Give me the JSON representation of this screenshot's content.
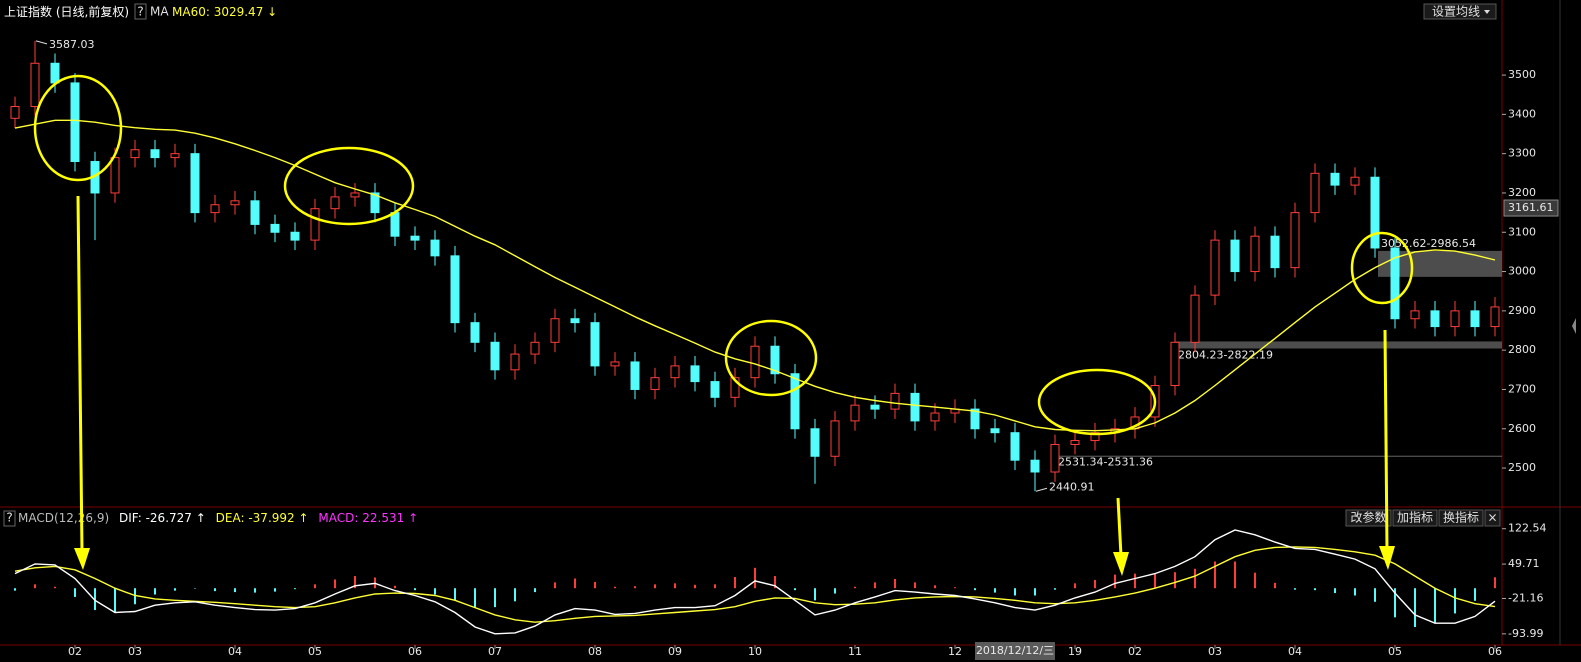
{
  "toolbar": {
    "help": "?",
    "ma_settings": "设置均线",
    "macd_buttons": [
      "改参数",
      "加指标",
      "换指标"
    ],
    "close": "×",
    "cursor_date": "2018/12/12/三"
  },
  "chart_data": [
    {
      "type": "candlestick",
      "title": "上证指数",
      "subtitle": "(日线,前复权)",
      "indicator_label": "MA",
      "up_color": "#ff3c3c",
      "down_color": "#54fcfc",
      "ylim": [
        2406,
        3691
      ],
      "yticks": [
        2500,
        2600,
        2700,
        2800,
        2900,
        3000,
        3100,
        3200,
        3300,
        3400,
        3500
      ],
      "cursor_price": 3161.61,
      "open": [
        3390,
        3420,
        3530,
        3480,
        3280,
        3200,
        3290,
        3310,
        3290,
        3300,
        3150,
        3170,
        3180,
        3120,
        3100,
        3080,
        3160,
        3190,
        3200,
        3150,
        3090,
        3080,
        3040,
        2870,
        2820,
        2750,
        2790,
        2820,
        2880,
        2870,
        2760,
        2770,
        2700,
        2730,
        2760,
        2720,
        2680,
        2730,
        2810,
        2740,
        2600,
        2530,
        2620,
        2660,
        2650,
        2690,
        2620,
        2640,
        2650,
        2600,
        2590,
        2520,
        2490,
        2560,
        2570,
        2590,
        2600,
        2630,
        2710,
        2820,
        2940,
        3080,
        3000,
        3090,
        3010,
        3150,
        3250,
        3220,
        3240,
        3060,
        2880,
        2900,
        2860,
        2900,
        2860
      ],
      "high": [
        3445,
        3587.03,
        3555,
        3505,
        3305,
        3315,
        3335,
        3335,
        3325,
        3325,
        3195,
        3205,
        3205,
        3145,
        3125,
        3185,
        3215,
        3225,
        3225,
        3175,
        3115,
        3105,
        3065,
        2895,
        2845,
        2815,
        2845,
        2905,
        2905,
        2895,
        2795,
        2795,
        2755,
        2785,
        2785,
        2745,
        2755,
        2835,
        2835,
        2765,
        2625,
        2645,
        2685,
        2685,
        2715,
        2715,
        2665,
        2675,
        2675,
        2625,
        2615,
        2545,
        2585,
        2595,
        2615,
        2625,
        2655,
        2735,
        2845,
        2965,
        3105,
        3105,
        3115,
        3115,
        3175,
        3275,
        3275,
        3265,
        3265,
        3085,
        2925,
        2925,
        2925,
        2925,
        2935
      ],
      "low": [
        3365,
        3395,
        3455,
        3255,
        3080,
        3175,
        3265,
        3265,
        3265,
        3125,
        3125,
        3145,
        3095,
        3075,
        3055,
        3055,
        3135,
        3165,
        3125,
        3065,
        3055,
        3015,
        2845,
        2795,
        2725,
        2725,
        2765,
        2795,
        2845,
        2735,
        2735,
        2675,
        2675,
        2705,
        2695,
        2655,
        2655,
        2705,
        2715,
        2575,
        2460,
        2505,
        2595,
        2625,
        2625,
        2595,
        2595,
        2615,
        2575,
        2565,
        2495,
        2440.91,
        2465,
        2535,
        2545,
        2565,
        2575,
        2605,
        2685,
        2795,
        2915,
        2975,
        2975,
        2985,
        2985,
        3125,
        3195,
        3195,
        3035,
        2855,
        2855,
        2835,
        2835,
        2835,
        2835
      ],
      "close": [
        3420,
        3530,
        3480,
        3280,
        3200,
        3290,
        3310,
        3290,
        3300,
        3150,
        3170,
        3180,
        3120,
        3100,
        3080,
        3160,
        3190,
        3200,
        3150,
        3090,
        3080,
        3040,
        2870,
        2820,
        2750,
        2790,
        2820,
        2880,
        2870,
        2760,
        2770,
        2700,
        2730,
        2760,
        2720,
        2680,
        2730,
        2810,
        2740,
        2600,
        2530,
        2620,
        2660,
        2650,
        2690,
        2620,
        2640,
        2650,
        2600,
        2590,
        2520,
        2490,
        2560,
        2570,
        2590,
        2600,
        2630,
        2710,
        2820,
        2940,
        3080,
        3000,
        3090,
        3010,
        3150,
        3250,
        3220,
        3240,
        3060,
        2880,
        2900,
        2860,
        2900,
        2860,
        2910
      ],
      "series": [
        {
          "name": "MA60:",
          "color": "#ffff33",
          "trend": "↓",
          "values": [
            3365,
            3375,
            3385,
            3385,
            3380,
            3372,
            3366,
            3362,
            3360,
            3352,
            3340,
            3325,
            3308,
            3290,
            3270,
            3248,
            3226,
            3210,
            3195,
            3175,
            3158,
            3140,
            3115,
            3090,
            3068,
            3040,
            3012,
            2985,
            2960,
            2935,
            2910,
            2885,
            2862,
            2840,
            2818,
            2795,
            2778,
            2765,
            2748,
            2728,
            2708,
            2692,
            2680,
            2672,
            2665,
            2660,
            2655,
            2650,
            2645,
            2635,
            2620,
            2605,
            2598,
            2596,
            2595,
            2597,
            2600,
            2615,
            2640,
            2672,
            2710,
            2750,
            2790,
            2830,
            2870,
            2910,
            2945,
            2980,
            3010,
            3035,
            3050,
            3055,
            3052,
            3042,
            3029.47
          ]
        }
      ],
      "zones": [
        {
          "label": "2804.23-2822.19",
          "values": [
            2804.23,
            2822.19
          ]
        },
        {
          "label": "3052.62-2986.54",
          "values": [
            3052.62,
            2986.54
          ]
        },
        {
          "label": "2531.34-2531.36",
          "values": [
            2531.34,
            2531.36
          ]
        }
      ]
    },
    {
      "type": "macd",
      "title": "MACD(12,26,9)",
      "up_color": "#ff3c3c",
      "down_color": "#54fcfc",
      "ylim": [
        -117,
        157
      ],
      "yticks": [
        -93.99,
        -21.16,
        49.71,
        122.54
      ],
      "categories": [
        null,
        null,
        null,
        "02",
        null,
        null,
        "03",
        null,
        null,
        null,
        null,
        "04",
        null,
        null,
        null,
        "05",
        null,
        null,
        null,
        null,
        "06",
        null,
        null,
        null,
        "07",
        null,
        null,
        null,
        null,
        "08",
        null,
        null,
        null,
        "09",
        null,
        null,
        null,
        "10",
        null,
        null,
        null,
        null,
        "11",
        null,
        null,
        null,
        null,
        "12",
        null,
        null,
        null,
        null,
        null,
        "19",
        null,
        null,
        "02",
        null,
        null,
        null,
        "03",
        null,
        null,
        null,
        "04",
        null,
        null,
        null,
        null,
        "05",
        null,
        null,
        null,
        null,
        "06"
      ],
      "series": [
        {
          "name": "DIF:",
          "color": "#ffffff",
          "trend": "↑",
          "values": [
            30,
            50,
            48,
            20,
            -25,
            -50,
            -48,
            -35,
            -30,
            -28,
            -35,
            -40,
            -44,
            -45,
            -42,
            -30,
            -12,
            5,
            10,
            -5,
            -15,
            -28,
            -50,
            -80,
            -94,
            -92,
            -78,
            -55,
            -42,
            -45,
            -54,
            -52,
            -45,
            -40,
            -40,
            -36,
            -15,
            15,
            5,
            -25,
            -55,
            -45,
            -30,
            -18,
            -5,
            -8,
            -12,
            -15,
            -22,
            -30,
            -40,
            -45,
            -35,
            -20,
            -8,
            10,
            20,
            30,
            45,
            65,
            100,
            120,
            110,
            95,
            82,
            80,
            70,
            60,
            40,
            -10,
            -55,
            -72,
            -72,
            -58,
            -26.727
          ]
        },
        {
          "name": "DEA:",
          "color": "#ffff33",
          "trend": "↑",
          "values": [
            35,
            42,
            45,
            38,
            20,
            0,
            -15,
            -22,
            -25,
            -27,
            -29,
            -32,
            -35,
            -38,
            -40,
            -38,
            -30,
            -20,
            -12,
            -10,
            -11,
            -15,
            -25,
            -40,
            -55,
            -65,
            -70,
            -67,
            -62,
            -58,
            -57,
            -56,
            -53,
            -50,
            -47,
            -44,
            -38,
            -27,
            -20,
            -21,
            -30,
            -34,
            -33,
            -30,
            -24,
            -20,
            -18,
            -17,
            -18,
            -21,
            -25,
            -30,
            -32,
            -30,
            -25,
            -18,
            -10,
            0,
            12,
            25,
            45,
            65,
            78,
            84,
            85,
            84,
            80,
            75,
            68,
            50,
            25,
            0,
            -20,
            -32,
            -37.992
          ]
        },
        {
          "name": "MACD:",
          "color": "#ff33ff",
          "trend": "↑",
          "values": [
            -5,
            8,
            3,
            -18,
            -45,
            -50,
            -33,
            -13,
            -5,
            -1,
            -6,
            -8,
            -9,
            -7,
            -2,
            8,
            18,
            25,
            22,
            5,
            -4,
            -13,
            -25,
            -40,
            -39,
            -27,
            -8,
            12,
            20,
            13,
            3,
            4,
            8,
            10,
            7,
            8,
            23,
            42,
            25,
            -4,
            -25,
            -11,
            3,
            12,
            19,
            12,
            6,
            2,
            -4,
            -9,
            -15,
            -15,
            -3,
            10,
            17,
            28,
            30,
            30,
            33,
            40,
            55,
            55,
            32,
            11,
            -3,
            -4,
            -10,
            -15,
            -28,
            -60,
            -80,
            -72,
            -52,
            -26,
            22.531
          ]
        }
      ]
    }
  ]
}
